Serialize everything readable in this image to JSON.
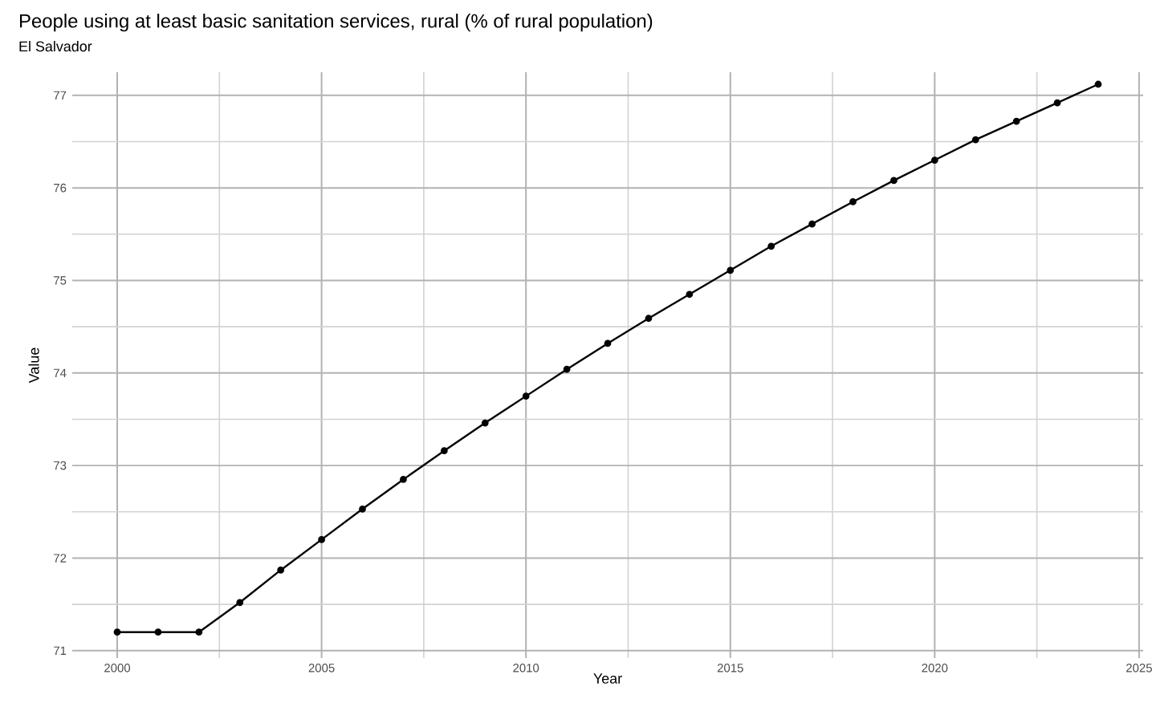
{
  "chart_data": {
    "type": "line",
    "title": "People using at least basic sanitation services, rural (% of rural population)",
    "subtitle": "El Salvador",
    "xlabel": "Year",
    "ylabel": "Value",
    "x": [
      2000,
      2001,
      2002,
      2003,
      2004,
      2005,
      2006,
      2007,
      2008,
      2009,
      2010,
      2011,
      2012,
      2013,
      2014,
      2015,
      2016,
      2017,
      2018,
      2019,
      2020,
      2021,
      2022,
      2023,
      2024
    ],
    "series": [
      {
        "color": "#000000",
        "values": [
          71.2,
          71.2,
          71.2,
          71.52,
          71.87,
          72.2,
          72.53,
          72.85,
          73.16,
          73.46,
          73.75,
          74.04,
          74.32,
          74.59,
          74.85,
          75.11,
          75.37,
          75.61,
          75.85,
          76.08,
          76.3,
          76.52,
          76.72,
          76.92,
          77.12
        ]
      }
    ],
    "xlim": [
      1998.9,
      2025.1
    ],
    "ylim": [
      70.92,
      77.25
    ],
    "xticks": [
      2000,
      2005,
      2010,
      2015,
      2020,
      2025
    ],
    "yticks": [
      71,
      72,
      73,
      74,
      75,
      76,
      77
    ],
    "grid": true,
    "marker": "circle",
    "line_style": "solid"
  }
}
